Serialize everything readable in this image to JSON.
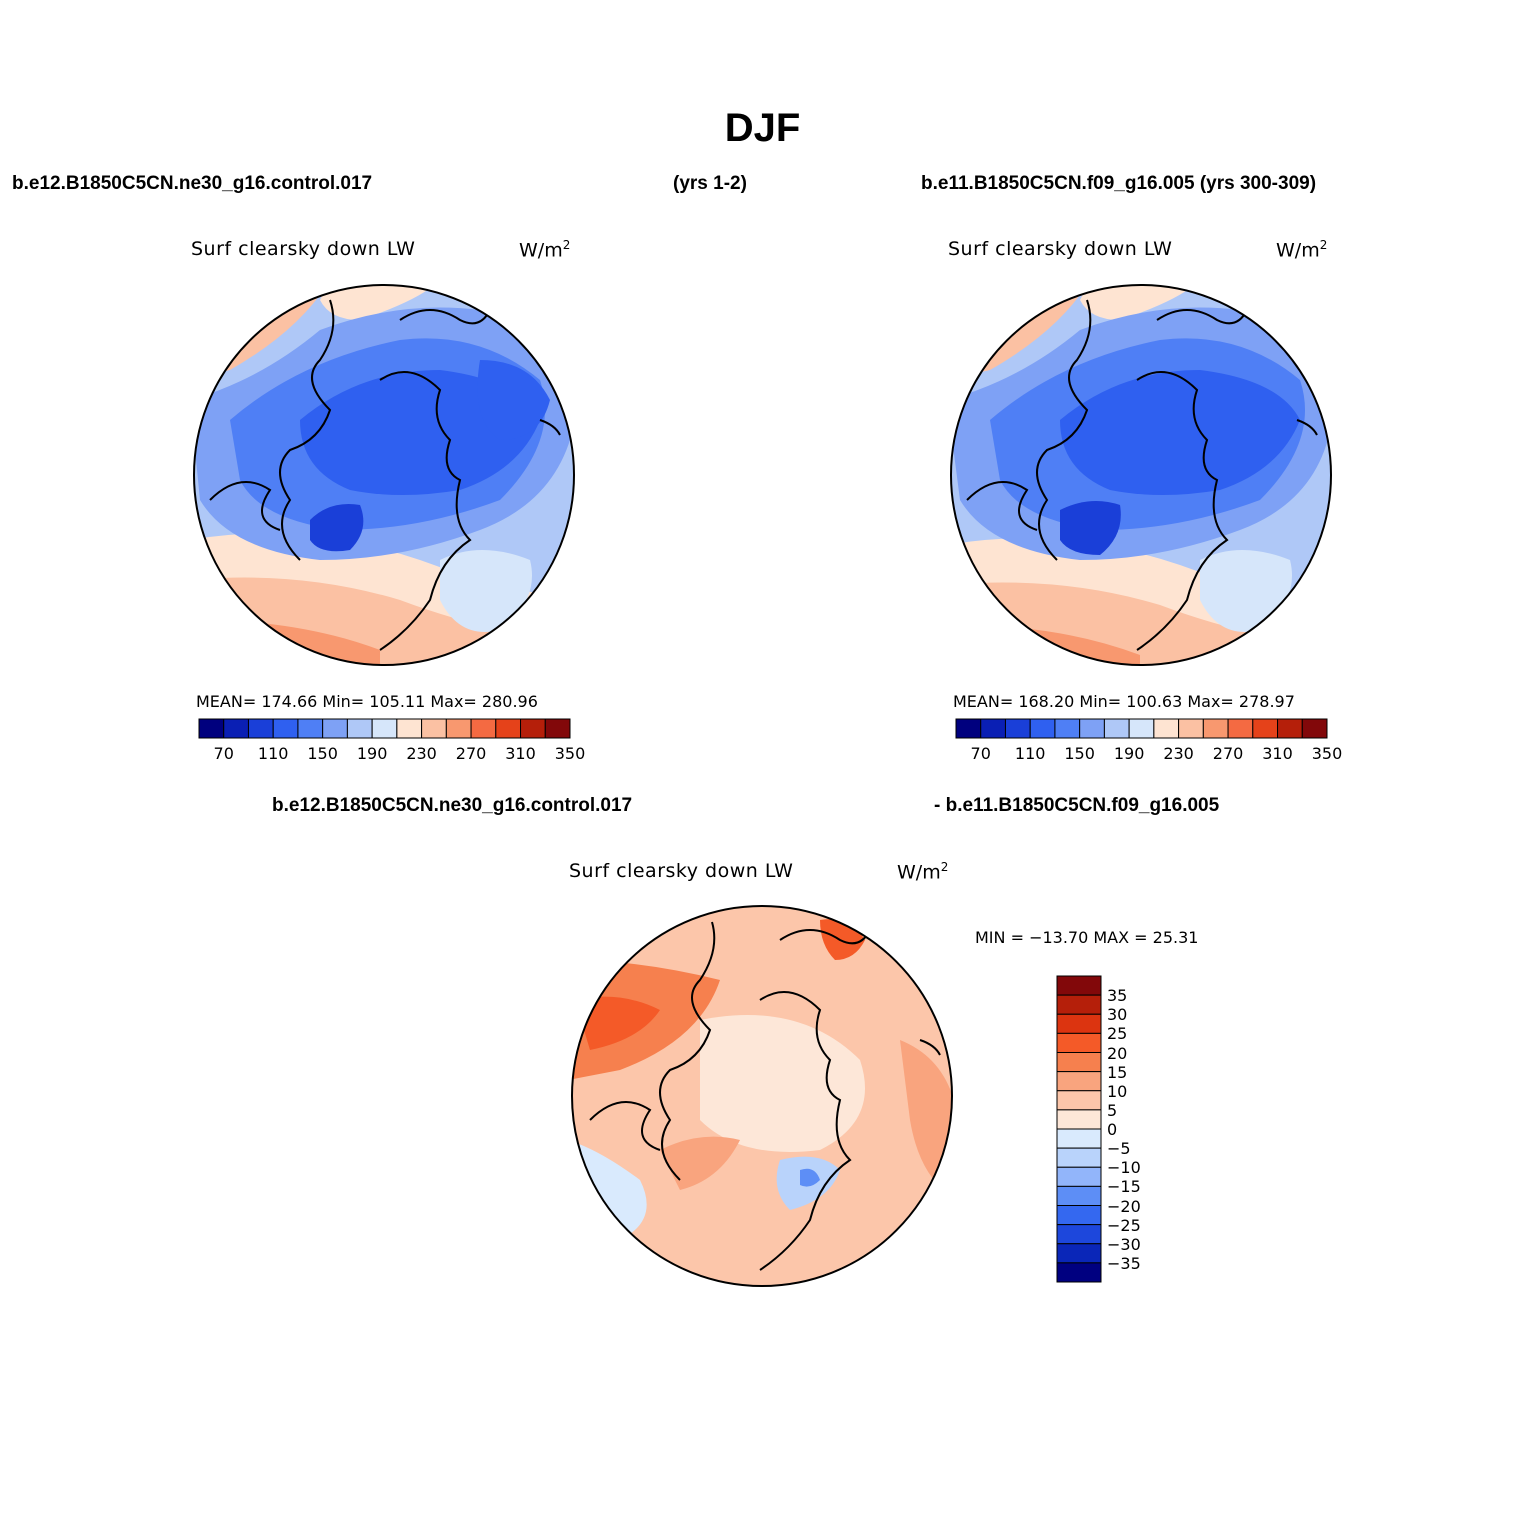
{
  "figure": {
    "title": "DJF",
    "left_header": "b.e12.B1850C5CN.ne30_g16.control.017",
    "left_years": "(yrs 1-2)",
    "right_header": "b.e11.B1850C5CN.f09_g16.005 (yrs 300-309)",
    "diff_header_left": "b.e12.B1850C5CN.ne30_g16.control.017",
    "diff_header_right": "- b.e11.B1850C5CN.f09_g16.005"
  },
  "panels": {
    "left": {
      "variable": "Surf  clearsky  down  LW",
      "units": "W/m",
      "units_exp": "2",
      "stats": "MEAN=  174.66    Min=  105.11    Max=  280.96"
    },
    "right": {
      "variable": "Surf  clearsky  down  LW",
      "units": "W/m",
      "units_exp": "2",
      "stats": "MEAN=  168.20    Min=  100.63    Max=  278.97"
    },
    "diff": {
      "variable": "Surf  clearsky  down  LW",
      "units": "W/m",
      "units_exp": "2",
      "stats": "MIN  =  −13.70  MAX  =    25.31"
    }
  },
  "colorbar_abs": {
    "colors": [
      "#00007e",
      "#0a1fb4",
      "#1a3fd8",
      "#2f60f0",
      "#4f7ff5",
      "#7ea1f5",
      "#afc8f7",
      "#d6e6fa",
      "#fee4d2",
      "#fbc1a3",
      "#f8986f",
      "#f46a42",
      "#e5421a",
      "#b51f0a",
      "#82080a"
    ],
    "tick_labels": [
      "70",
      "110",
      "150",
      "190",
      "230",
      "270",
      "310",
      "350"
    ]
  },
  "colorbar_diff": {
    "colors": [
      "#82080a",
      "#b51f0a",
      "#dc3410",
      "#f45a28",
      "#f6804e",
      "#f9a47e",
      "#fcc6aa",
      "#fde7d8",
      "#d9eafd",
      "#b9d3fb",
      "#92b5fa",
      "#5d8ef6",
      "#3468f0",
      "#1d47dc",
      "#0a26b8",
      "#000080"
    ],
    "tick_labels": [
      "35",
      "30",
      "25",
      "20",
      "15",
      "10",
      "5",
      "0",
      "−5",
      "−10",
      "−15",
      "−20",
      "−25",
      "−30",
      "−35"
    ]
  }
}
